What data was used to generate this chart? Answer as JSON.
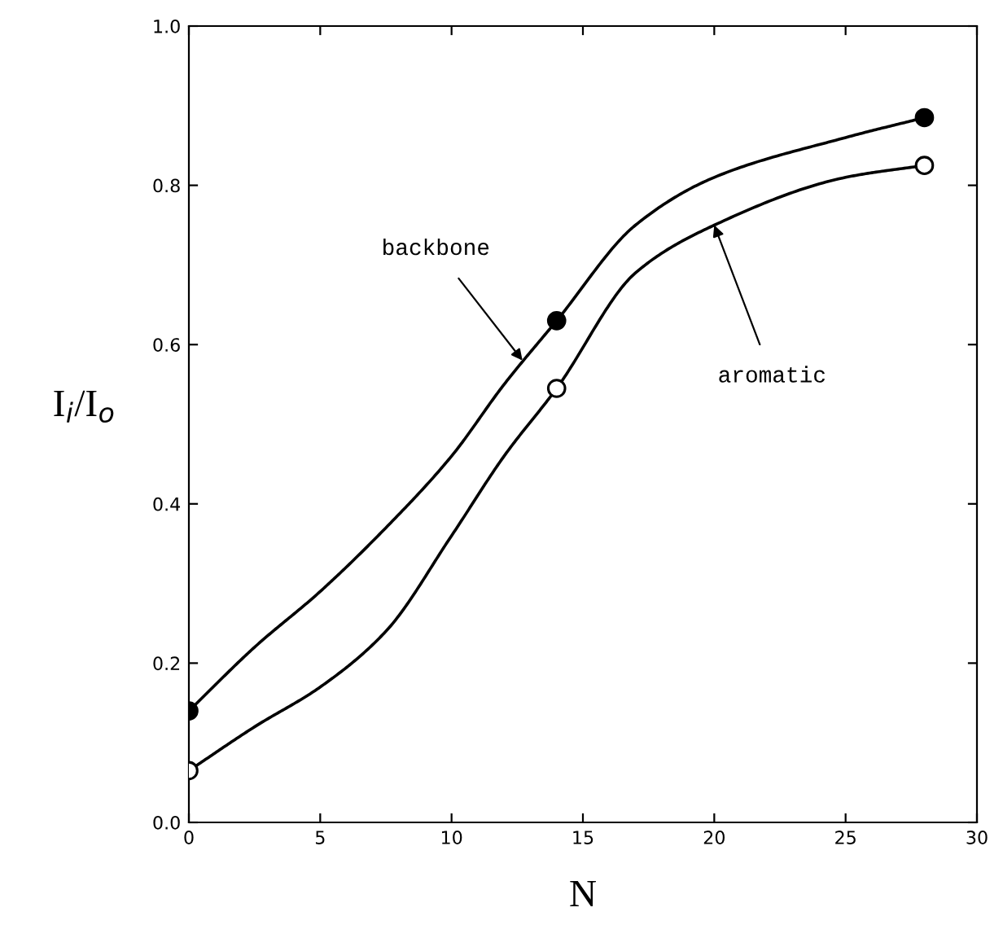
{
  "chart_data": {
    "type": "line",
    "xlabel": "N",
    "ylabel": "I$_{i}$/I$_{o}$",
    "xlim": [
      0,
      30
    ],
    "ylim": [
      0,
      1.0
    ],
    "xticks": [
      0,
      5,
      10,
      15,
      20,
      25,
      30
    ],
    "yticks": [
      {
        "value": 0,
        "label": "0.0"
      },
      0.2,
      0.4,
      0.6,
      0.8,
      {
        "value": 1.0,
        "label": "1.0"
      }
    ],
    "grid": false,
    "legend": false,
    "series": [
      {
        "color": "#000000",
        "marker": "none",
        "line_style": "solid",
        "x": [
          0,
          2.5,
          5,
          7.5,
          10,
          12,
          14,
          17,
          20,
          25,
          28
        ],
        "values": [
          0.14,
          0.22,
          0.29,
          0.37,
          0.46,
          0.55,
          0.63,
          0.75,
          0.81,
          0.86,
          0.885
        ]
      },
      {
        "color": "#000000",
        "marker": "none",
        "line_style": "solid",
        "x": [
          0,
          2.5,
          5,
          7.5,
          10,
          12,
          14,
          17,
          20,
          25,
          28
        ],
        "values": [
          0.065,
          0.12,
          0.17,
          0.24,
          0.36,
          0.46,
          0.545,
          0.69,
          0.75,
          0.81,
          0.825
        ]
      },
      {
        "type": "scatter",
        "color": "#000000",
        "marker": "circle",
        "x": [
          0,
          14,
          28
        ],
        "values": [
          0.14,
          0.63,
          0.885
        ]
      },
      {
        "type": "scatter",
        "color": "#000000",
        "marker": "circle",
        "x": [
          0,
          14,
          28
        ],
        "values": [
          0.065,
          0.545,
          0.825
        ]
      }
    ],
    "annotations": [
      {
        "text": "backbone",
        "x": 12.7,
        "y": 0.58
      },
      {
        "text": "aromatic",
        "x": 20,
        "y": 0.75
      }
    ]
  }
}
